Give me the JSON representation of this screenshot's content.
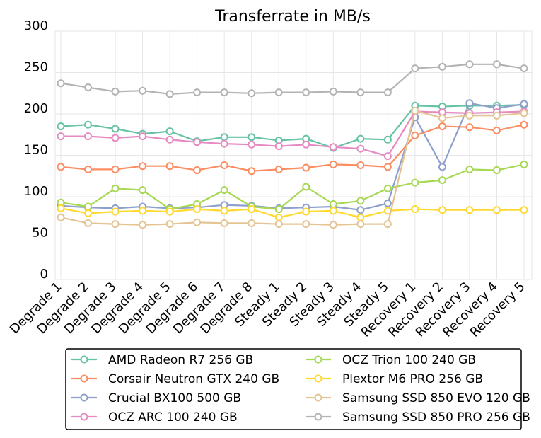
{
  "chart_data": {
    "type": "line",
    "title": "Transferrate in MB/s",
    "xlabel": "",
    "ylabel": "",
    "ylim": [
      0,
      300
    ],
    "yticks": [
      0,
      50,
      100,
      150,
      200,
      250,
      300
    ],
    "grid": true,
    "legend_position": "bottom",
    "categories": [
      "Degrade 1",
      "Degrade 2",
      "Degrade 3",
      "Degrade 4",
      "Degrade 5",
      "Degrade 6",
      "Degrade 7",
      "Degrade 8",
      "Steady 1",
      "Steady 2",
      "Steady 3",
      "Steady 4",
      "Steady 5",
      "Recovery 1",
      "Recovery 2",
      "Recovery 3",
      "Recovery 4",
      "Recovery 5"
    ],
    "series": [
      {
        "name": "AMD Radeon R7 256 GB",
        "color": "#66c2a5",
        "values": [
          185,
          187,
          182,
          176,
          179,
          167,
          172,
          172,
          168,
          170,
          159,
          170,
          169,
          210,
          209,
          210,
          210,
          211
        ]
      },
      {
        "name": "Corsair Neutron GTX 240 GB",
        "color": "#fc8d62",
        "values": [
          136,
          133,
          133,
          137,
          137,
          132,
          138,
          131,
          133,
          135,
          139,
          138,
          136,
          174,
          185,
          184,
          180,
          187
        ]
      },
      {
        "name": "Crucial BX100 500 GB",
        "color": "#8da0cb",
        "values": [
          89,
          87,
          86,
          88,
          86,
          87,
          90,
          89,
          86,
          87,
          88,
          84,
          92,
          196,
          136,
          213,
          207,
          212
        ]
      },
      {
        "name": "OCZ ARC 100 240 GB",
        "color": "#e78ac3",
        "values": [
          173,
          173,
          171,
          173,
          169,
          166,
          164,
          163,
          161,
          163,
          160,
          158,
          149,
          203,
          202,
          201,
          202,
          203
        ]
      },
      {
        "name": "OCZ Trion 100 240 GB",
        "color": "#a6d854",
        "values": [
          93,
          88,
          110,
          108,
          85,
          91,
          108,
          88,
          85,
          112,
          91,
          95,
          110,
          117,
          120,
          133,
          132,
          139
        ]
      },
      {
        "name": "Plextor M6 PRO 256 GB",
        "color": "#ffd92f",
        "values": [
          86,
          80,
          82,
          83,
          82,
          85,
          83,
          85,
          75,
          82,
          83,
          75,
          83,
          85,
          84,
          84,
          84,
          84
        ]
      },
      {
        "name": "Samsung SSD 850 EVO 120 GB",
        "color": "#e5c494",
        "values": [
          75,
          68,
          67,
          66,
          67,
          69,
          68,
          68,
          67,
          67,
          66,
          67,
          67,
          204,
          195,
          198,
          198,
          201
        ]
      },
      {
        "name": "Samsung SSD 850 PRO 256 GB",
        "color": "#b3b3b3",
        "values": [
          237,
          232,
          227,
          228,
          224,
          226,
          226,
          225,
          226,
          226,
          227,
          226,
          226,
          255,
          257,
          260,
          260,
          255
        ]
      }
    ]
  }
}
